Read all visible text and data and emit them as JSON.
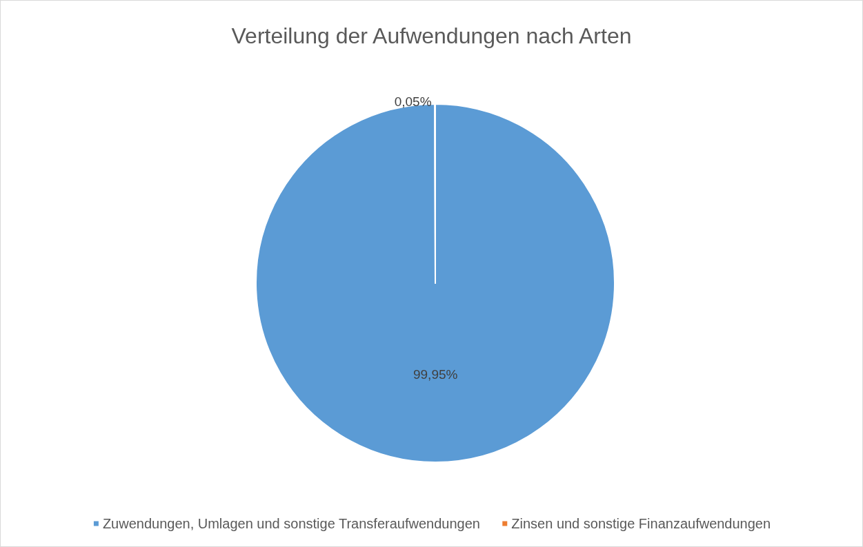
{
  "chart_data": {
    "type": "pie",
    "title": "Verteilung der Aufwendungen nach Arten",
    "categories": [
      "Zuwendungen, Umlagen und sonstige Transferaufwendungen",
      "Zinsen und sonstige Finanzaufwendungen"
    ],
    "values": [
      99.95,
      0.05
    ],
    "colors": [
      "#5b9bd5",
      "#ed7d31"
    ],
    "value_labels": [
      "99,95%",
      "0,05%"
    ],
    "legend": "bottom"
  }
}
